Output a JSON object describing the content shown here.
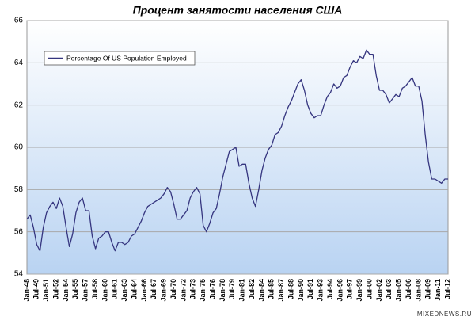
{
  "chart_data": {
    "type": "line",
    "title": "Процент занятости населения США",
    "watermark": "MIXEDNEWS.RU",
    "categories": [
      "Jan-48",
      null,
      null,
      "Jul-49",
      null,
      null,
      "Jan-51",
      null,
      null,
      "Jul-52",
      null,
      null,
      "Jan-54",
      null,
      null,
      "Jul-55",
      null,
      null,
      "Jan-57",
      null,
      null,
      "Jul-58",
      null,
      null,
      "Jan-60",
      null,
      null,
      "Jul-61",
      null,
      null,
      "Jan-63",
      null,
      null,
      "Jul-64",
      null,
      null,
      "Jan-66",
      null,
      null,
      "Jul-67",
      null,
      null,
      "Jan-69",
      null,
      null,
      "Jul-70",
      null,
      null,
      "Jan-72",
      null,
      null,
      "Jul-73",
      null,
      null,
      "Jan-75",
      null,
      null,
      "Jul-76",
      null,
      null,
      "Jan-78",
      null,
      null,
      "Jul-79",
      null,
      null,
      "Jan-81",
      null,
      null,
      "Jul-82",
      null,
      null,
      "Jan-84",
      null,
      null,
      "Jul-85",
      null,
      null,
      "Jan-87",
      null,
      null,
      "Jul-88",
      null,
      null,
      "Jan-90",
      null,
      null,
      "Jul-91",
      null,
      null,
      "Jan-93",
      null,
      null,
      "Jul-94",
      null,
      null,
      "Jan-96",
      null,
      null,
      "Jul-97",
      null,
      null,
      "Jan-99",
      null,
      null,
      "Jul-00",
      null,
      null,
      "Jan-02",
      null,
      null,
      "Jul-03",
      null,
      null,
      "Jan-05",
      null,
      null,
      "Jul-06",
      null,
      null,
      "Jan-08",
      null,
      null,
      "Jul-09",
      null,
      null,
      "Jan-11",
      null,
      null,
      "Jul-12"
    ],
    "series": [
      {
        "name": "Percentage Of US Population Employed",
        "color": "#35357f",
        "values": [
          56.6,
          56.8,
          56.2,
          55.4,
          55.1,
          56.2,
          56.9,
          57.2,
          57.4,
          57.1,
          57.6,
          57.2,
          56.2,
          55.3,
          55.9,
          56.9,
          57.4,
          57.6,
          57.0,
          57.0,
          55.8,
          55.2,
          55.7,
          55.8,
          56.0,
          56.0,
          55.5,
          55.1,
          55.5,
          55.5,
          55.4,
          55.5,
          55.8,
          55.9,
          56.2,
          56.5,
          56.9,
          57.2,
          57.3,
          57.4,
          57.5,
          57.6,
          57.8,
          58.1,
          57.9,
          57.3,
          56.6,
          56.6,
          56.8,
          57.0,
          57.6,
          57.9,
          58.1,
          57.8,
          56.3,
          56.0,
          56.4,
          56.9,
          57.1,
          57.8,
          58.6,
          59.2,
          59.8,
          59.9,
          60.0,
          59.1,
          59.2,
          59.2,
          58.3,
          57.6,
          57.2,
          58.0,
          58.9,
          59.5,
          59.9,
          60.1,
          60.6,
          60.7,
          61.0,
          61.5,
          61.9,
          62.2,
          62.6,
          63.0,
          63.2,
          62.7,
          62.0,
          61.6,
          61.4,
          61.5,
          61.5,
          62.0,
          62.4,
          62.6,
          63.0,
          62.8,
          62.9,
          63.3,
          63.4,
          63.8,
          64.1,
          64.0,
          64.3,
          64.2,
          64.6,
          64.4,
          64.4,
          63.4,
          62.7,
          62.7,
          62.5,
          62.1,
          62.3,
          62.5,
          62.4,
          62.8,
          62.9,
          63.1,
          63.3,
          62.9,
          62.9,
          62.2,
          60.6,
          59.3,
          58.5,
          58.5,
          58.4,
          58.3,
          58.5,
          58.5
        ]
      }
    ],
    "ylim": [
      54,
      66
    ],
    "yticks": [
      54,
      56,
      58,
      60,
      62,
      64,
      66
    ],
    "grid": true,
    "legend": "top-left"
  }
}
